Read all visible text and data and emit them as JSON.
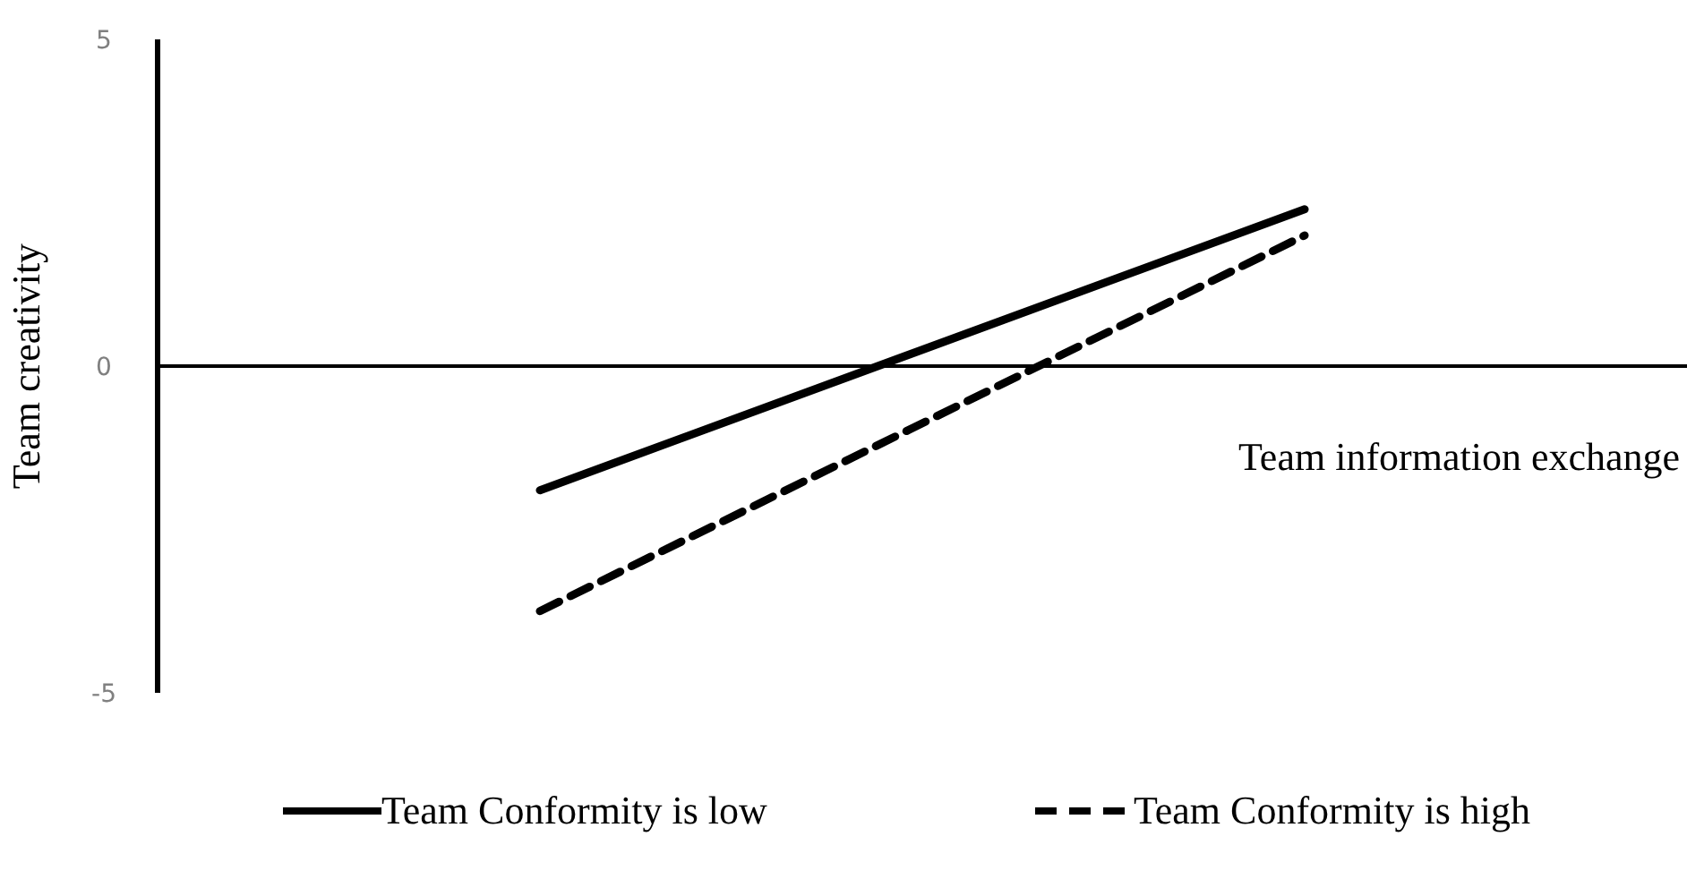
{
  "chart_data": {
    "type": "line",
    "ylabel": "Team creativity",
    "xlabel": "Team information exchange",
    "categories": [
      null,
      null
    ],
    "ylim": [
      -5,
      5
    ],
    "yticks": [
      -5,
      0,
      5
    ],
    "legend": "bottom",
    "marker": "none",
    "series": [
      {
        "name": "Team Conformity is low",
        "color": "#000000",
        "line_style": "solid",
        "values": [
          -1.9,
          2.4
        ]
      },
      {
        "name": "Team Conformity is high",
        "color": "#000000",
        "line_style": "dashed",
        "values": [
          -3.75,
          2.0
        ]
      }
    ]
  }
}
